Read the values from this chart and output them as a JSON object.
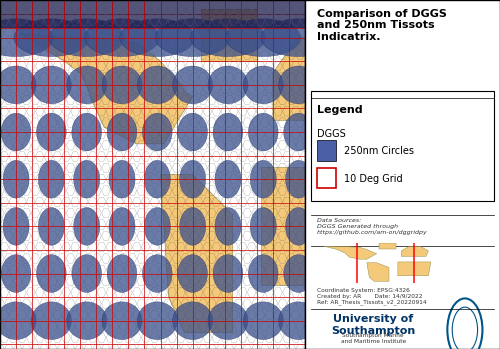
{
  "title": "Comparison of DGGS\nand 250nm Tissots\nIndicatrix.",
  "legend_title": "Legend",
  "legend_subtitle": "DGGS",
  "legend_items": [
    "250nm Circles",
    "10 Deg Grid"
  ],
  "legend_colors": [
    "#4a5fa5",
    "#ffffff"
  ],
  "legend_edge_colors": [
    "#4a5fa5",
    "#cc0000"
  ],
  "data_source_text": "Data Sources:\nDGGS Generated through\nhttps://github.com/am-on/dggridpy",
  "coord_text": "Coordinate System: EPSG:4326\nCreated by: AR       Date: 14/9/2022\nRef: AR_Thesis_Tissots_v2_20220914",
  "university_text": "University of\nSouthampton",
  "university_sub": "Southampton Marine\nand Maritime Institute",
  "map_bg_color": "#b8d8e8",
  "land_color": "#f5c97a",
  "hex_edge_color": "#444444",
  "circle_color": "#3a4f8a",
  "circle_alpha": 0.75,
  "grid_color": "#cc0000",
  "grid_alpha": 0.85,
  "polar_color": "#1a1a4a",
  "panel_bg": "#ffffff",
  "title_fontsize": 8,
  "legend_fontsize": 7,
  "small_fontsize": 4.5,
  "lon_min": -180,
  "lon_max": 10,
  "lat_min": -62,
  "lat_max": 86
}
